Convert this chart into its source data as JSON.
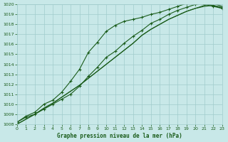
{
  "title": "Graphe pression niveau de la mer (hPa)",
  "bg_color": "#c8e8e8",
  "grid_color": "#a0cccc",
  "line_color": "#1a5c1a",
  "xlim": [
    0,
    23
  ],
  "ylim": [
    1008,
    1020
  ],
  "xticks": [
    0,
    1,
    2,
    3,
    4,
    5,
    6,
    7,
    8,
    9,
    10,
    11,
    12,
    13,
    14,
    15,
    16,
    17,
    18,
    19,
    20,
    21,
    22,
    23
  ],
  "yticks": [
    1008,
    1009,
    1010,
    1011,
    1012,
    1013,
    1014,
    1015,
    1016,
    1017,
    1018,
    1019,
    1020
  ],
  "series": [
    [
      1008.2,
      1008.8,
      1009.2,
      1010.0,
      1010.4,
      1011.2,
      1012.3,
      1013.5,
      1015.2,
      1016.2,
      1017.3,
      1017.9,
      1018.3,
      1018.5,
      1018.7,
      1019.0,
      1019.2,
      1019.5,
      1019.8,
      1020.1,
      1020.1,
      1020.0,
      1019.8,
      1019.6
    ],
    [
      1008.2,
      1008.7,
      1009.0,
      1009.5,
      1010.0,
      1010.5,
      1011.0,
      1011.8,
      1012.8,
      1013.7,
      1014.7,
      1015.3,
      1016.1,
      1016.8,
      1017.4,
      1018.1,
      1018.5,
      1019.0,
      1019.4,
      1019.7,
      1020.0,
      1020.1,
      1019.9,
      1019.7
    ],
    [
      1008.0,
      1008.5,
      1009.0,
      1009.6,
      1010.1,
      1010.7,
      1011.3,
      1011.9,
      1012.6,
      1013.3,
      1014.0,
      1014.7,
      1015.4,
      1016.1,
      1016.9,
      1017.5,
      1018.0,
      1018.5,
      1018.9,
      1019.3,
      1019.6,
      1019.8,
      1019.9,
      1019.6
    ],
    [
      1008.0,
      1008.5,
      1009.0,
      1009.6,
      1010.1,
      1010.7,
      1011.3,
      1011.9,
      1012.6,
      1013.3,
      1014.0,
      1014.7,
      1015.4,
      1016.1,
      1016.9,
      1017.5,
      1018.0,
      1018.5,
      1018.9,
      1019.3,
      1019.6,
      1019.9,
      1020.1,
      1019.8
    ]
  ],
  "marker_series": [
    0,
    1
  ],
  "marker": "+",
  "markersize": 3.5,
  "linewidth": 0.8
}
